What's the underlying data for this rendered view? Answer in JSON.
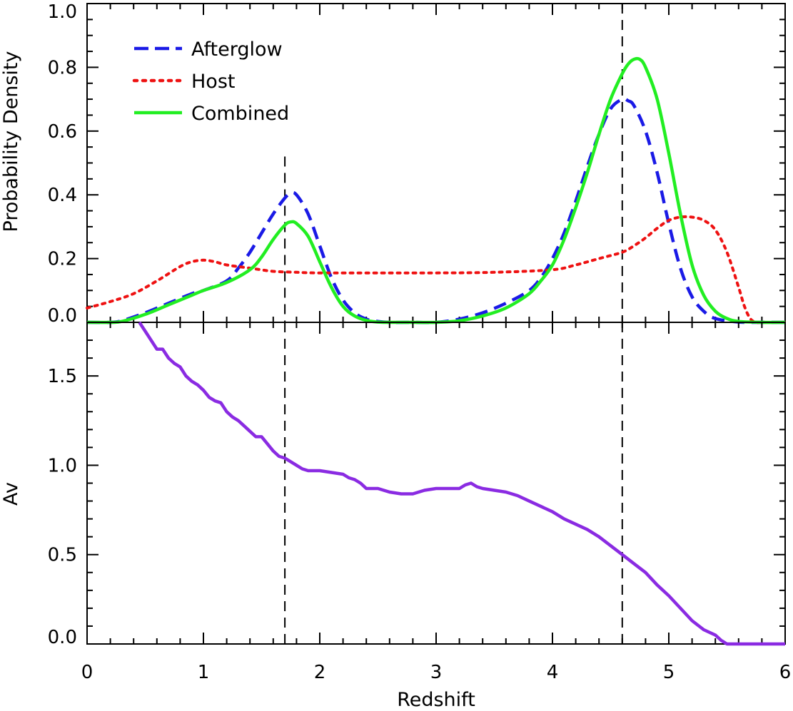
{
  "chart_data": [
    {
      "type": "line",
      "panel": "top",
      "xlabel": "",
      "ylabel": "Probability Density",
      "xlim": [
        0,
        6
      ],
      "ylim": [
        0,
        1.0
      ],
      "yticks": [
        "0.0",
        "0.2",
        "0.4",
        "0.6",
        "0.8",
        "1.0"
      ],
      "grid": false,
      "legend_position": "top-left",
      "reference_lines_x": [
        1.7,
        4.6
      ],
      "series": [
        {
          "name": "Afterglow",
          "style": "dashed",
          "color": "#1a1ae6",
          "x": [
            0,
            0.2,
            0.3,
            0.5,
            0.7,
            0.9,
            1.0,
            1.2,
            1.3,
            1.4,
            1.5,
            1.6,
            1.7,
            1.75,
            1.8,
            1.9,
            2.0,
            2.1,
            2.2,
            2.3,
            2.4,
            2.5,
            2.6,
            2.8,
            3.0,
            3.2,
            3.4,
            3.6,
            3.8,
            3.9,
            4.0,
            4.1,
            4.2,
            4.3,
            4.4,
            4.5,
            4.6,
            4.65,
            4.7,
            4.8,
            4.9,
            5.0,
            5.1,
            5.2,
            5.3,
            5.4,
            5.6,
            5.8,
            6.0
          ],
          "y": [
            0,
            0,
            0.005,
            0.03,
            0.06,
            0.09,
            0.1,
            0.13,
            0.17,
            0.22,
            0.28,
            0.34,
            0.39,
            0.405,
            0.4,
            0.34,
            0.24,
            0.14,
            0.07,
            0.03,
            0.01,
            0.003,
            0,
            0,
            0,
            0.01,
            0.03,
            0.06,
            0.1,
            0.14,
            0.2,
            0.28,
            0.38,
            0.49,
            0.59,
            0.67,
            0.7,
            0.695,
            0.68,
            0.6,
            0.47,
            0.31,
            0.17,
            0.08,
            0.035,
            0.012,
            0.001,
            0,
            0
          ]
        },
        {
          "name": "Host",
          "style": "dotted",
          "color": "#ee1111",
          "x": [
            0,
            0.2,
            0.4,
            0.6,
            0.8,
            0.9,
            1.0,
            1.1,
            1.2,
            1.4,
            1.6,
            1.8,
            2.0,
            2.5,
            3.0,
            3.5,
            4.0,
            4.2,
            4.4,
            4.6,
            4.7,
            4.8,
            4.9,
            5.0,
            5.1,
            5.2,
            5.3,
            5.4,
            5.5,
            5.6,
            5.65,
            5.7,
            5.75,
            5.8,
            6.0
          ],
          "y": [
            0.045,
            0.065,
            0.09,
            0.13,
            0.175,
            0.19,
            0.195,
            0.19,
            0.18,
            0.17,
            0.16,
            0.157,
            0.155,
            0.155,
            0.155,
            0.157,
            0.165,
            0.18,
            0.2,
            0.22,
            0.24,
            0.265,
            0.295,
            0.32,
            0.33,
            0.33,
            0.32,
            0.29,
            0.22,
            0.11,
            0.05,
            0.012,
            0,
            0,
            0
          ]
        },
        {
          "name": "Combined",
          "style": "solid",
          "color": "#22ee22",
          "x": [
            0,
            0.2,
            0.3,
            0.5,
            0.7,
            0.9,
            1.0,
            1.2,
            1.4,
            1.5,
            1.6,
            1.7,
            1.75,
            1.8,
            1.9,
            2.0,
            2.1,
            2.2,
            2.3,
            2.4,
            2.5,
            2.6,
            2.8,
            3.0,
            3.2,
            3.4,
            3.6,
            3.8,
            3.9,
            4.0,
            4.1,
            4.2,
            4.3,
            4.4,
            4.5,
            4.6,
            4.65,
            4.7,
            4.75,
            4.8,
            4.9,
            5.0,
            5.1,
            5.2,
            5.3,
            5.4,
            5.5,
            5.6,
            5.8,
            6.0
          ],
          "y": [
            0,
            0,
            0.003,
            0.025,
            0.055,
            0.085,
            0.1,
            0.125,
            0.165,
            0.205,
            0.26,
            0.305,
            0.315,
            0.31,
            0.27,
            0.19,
            0.11,
            0.05,
            0.02,
            0.006,
            0.001,
            0,
            0,
            0,
            0.005,
            0.02,
            0.045,
            0.09,
            0.13,
            0.18,
            0.26,
            0.36,
            0.47,
            0.59,
            0.7,
            0.78,
            0.81,
            0.825,
            0.825,
            0.8,
            0.7,
            0.53,
            0.34,
            0.18,
            0.085,
            0.035,
            0.012,
            0.003,
            0,
            0
          ]
        }
      ]
    },
    {
      "type": "line",
      "panel": "bottom",
      "xlabel": "Redshift",
      "ylabel": "Av",
      "xlim": [
        0,
        6
      ],
      "ylim": [
        0,
        1.8
      ],
      "xticks": [
        "0",
        "1",
        "2",
        "3",
        "4",
        "5",
        "6"
      ],
      "yticks": [
        "0.0",
        "0.5",
        "1.0",
        "1.5"
      ],
      "grid": false,
      "reference_lines_x": [
        1.7,
        4.6
      ],
      "series": [
        {
          "style": "solid",
          "color": "#8a2be2",
          "x": [
            0.45,
            0.5,
            0.55,
            0.6,
            0.65,
            0.7,
            0.75,
            0.8,
            0.85,
            0.9,
            0.95,
            1.0,
            1.05,
            1.1,
            1.15,
            1.2,
            1.25,
            1.3,
            1.35,
            1.4,
            1.45,
            1.5,
            1.55,
            1.6,
            1.65,
            1.7,
            1.75,
            1.8,
            1.85,
            1.9,
            2.0,
            2.1,
            2.2,
            2.25,
            2.3,
            2.35,
            2.4,
            2.5,
            2.6,
            2.7,
            2.8,
            2.9,
            3.0,
            3.1,
            3.2,
            3.25,
            3.3,
            3.35,
            3.4,
            3.5,
            3.6,
            3.7,
            3.8,
            3.9,
            4.0,
            4.1,
            4.2,
            4.3,
            4.4,
            4.5,
            4.6,
            4.7,
            4.8,
            4.9,
            5.0,
            5.1,
            5.2,
            5.3,
            5.4,
            5.45,
            5.5,
            5.6,
            5.8,
            6.0
          ],
          "y": [
            1.8,
            1.75,
            1.7,
            1.65,
            1.65,
            1.6,
            1.57,
            1.55,
            1.5,
            1.47,
            1.45,
            1.42,
            1.38,
            1.36,
            1.35,
            1.3,
            1.27,
            1.25,
            1.22,
            1.19,
            1.16,
            1.16,
            1.12,
            1.08,
            1.05,
            1.04,
            1.02,
            1.0,
            0.98,
            0.97,
            0.97,
            0.96,
            0.95,
            0.93,
            0.92,
            0.9,
            0.87,
            0.87,
            0.85,
            0.84,
            0.84,
            0.86,
            0.87,
            0.87,
            0.87,
            0.89,
            0.9,
            0.88,
            0.87,
            0.86,
            0.85,
            0.83,
            0.8,
            0.77,
            0.74,
            0.7,
            0.67,
            0.64,
            0.6,
            0.55,
            0.5,
            0.45,
            0.4,
            0.33,
            0.27,
            0.2,
            0.13,
            0.08,
            0.05,
            0.02,
            0,
            0,
            0,
            0
          ]
        }
      ]
    }
  ]
}
